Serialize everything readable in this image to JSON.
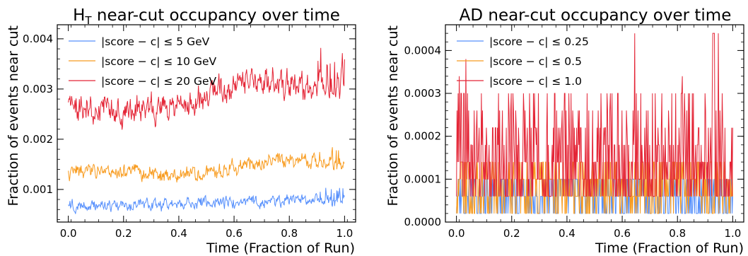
{
  "chart_data": [
    {
      "type": "line",
      "title": "HT near-cut occupancy over time",
      "title_main": "H",
      "title_sub": "T",
      "title_rest": " near-cut occupancy over time",
      "xlabel": "Time (Fraction of Run)",
      "ylabel": "Fraction of events near cut",
      "xlim": [
        -0.04,
        1.04
      ],
      "ylim": [
        0.00035,
        0.00428
      ],
      "xticks": [
        0.0,
        0.2,
        0.4,
        0.6,
        0.8,
        1.0
      ],
      "xtick_labels": [
        "0.0",
        "0.2",
        "0.4",
        "0.6",
        "0.8",
        "1.0"
      ],
      "yticks": [
        0.001,
        0.002,
        0.003,
        0.004
      ],
      "ytick_labels": [
        "0.001",
        "0.002",
        "0.003",
        "0.004"
      ],
      "legend_position": "top-left",
      "n_points": 500,
      "series": [
        {
          "name": "|score − c|  ≤  5 GeV",
          "color": "#5790fc",
          "mean_start": 0.00065,
          "mean_end": 0.0008,
          "noise": 9e-05,
          "min": 0.00045,
          "max": 0.00108,
          "trend": "flat"
        },
        {
          "name": "|score − c|  ≤  10 GeV",
          "color": "#f89c20",
          "mean_start": 0.00125,
          "mean_end": 0.00155,
          "noise": 0.00012,
          "min": 0.001,
          "max": 0.00195,
          "trend": "rising"
        },
        {
          "name": "|score − c|  ≤  20 GeV",
          "color": "#e42536",
          "mean_start": 0.0025,
          "mean_end": 0.0032,
          "noise": 0.00022,
          "min": 0.0018,
          "max": 0.00415,
          "trend": "rising"
        }
      ]
    },
    {
      "type": "line",
      "title": "AD near-cut occupancy over time",
      "xlabel": "Time (Fraction of Run)",
      "ylabel": "Fraction of events near cut",
      "xlim": [
        -0.04,
        1.04
      ],
      "ylim": [
        0.0,
        0.00046
      ],
      "xticks": [
        0.0,
        0.2,
        0.4,
        0.6,
        0.8,
        1.0
      ],
      "xtick_labels": [
        "0.0",
        "0.2",
        "0.4",
        "0.6",
        "0.8",
        "1.0"
      ],
      "yticks": [
        0.0,
        0.0001,
        0.0002,
        0.0003,
        0.0004
      ],
      "ytick_labels": [
        "0.0000",
        "0.0001",
        "0.0002",
        "0.0003",
        "0.0004"
      ],
      "legend_position": "top-left",
      "n_points": 500,
      "series": [
        {
          "name": "|score − c|  ≤  0.25",
          "color": "#5790fc",
          "levels": [
            2e-05,
            6e-05,
            0.0001
          ],
          "max": 0.0001
        },
        {
          "name": "|score − c|  ≤  0.5",
          "color": "#f89c20",
          "levels": [
            2e-05,
            6e-05,
            0.0001,
            0.00014
          ],
          "max": 0.00014
        },
        {
          "name": "|score − c|  ≤  1.0",
          "color": "#e42536",
          "levels": [
            6e-05,
            0.0001,
            0.00014,
            0.00018,
            0.00022,
            0.00026,
            0.0003,
            0.00034,
            0.00038,
            0.00044
          ],
          "max": 0.00044
        }
      ]
    }
  ]
}
